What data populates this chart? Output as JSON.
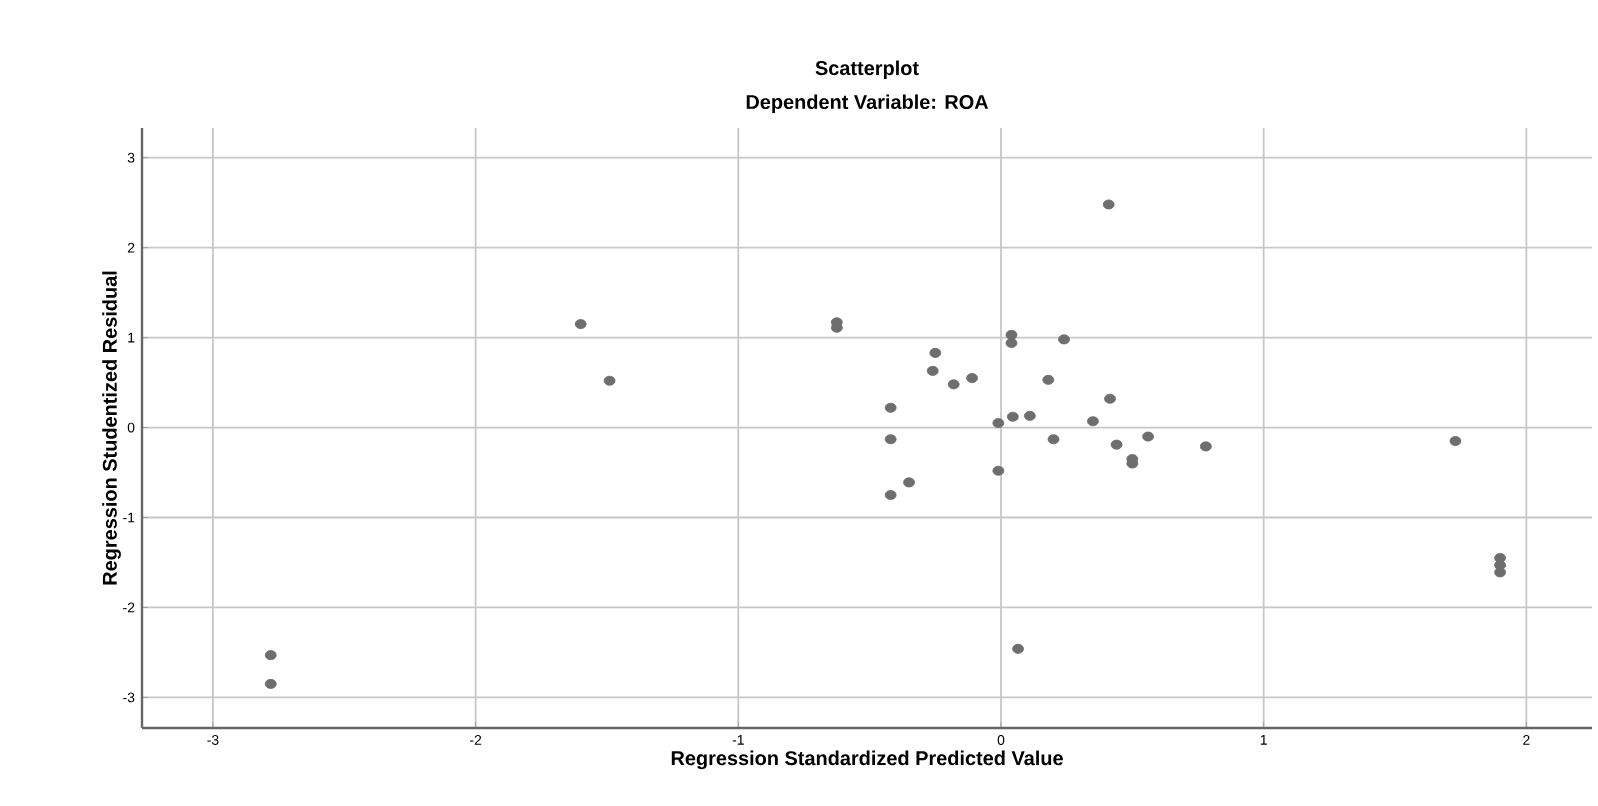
{
  "chart_data": {
    "type": "scatter",
    "title": "Scatterplot",
    "subtitle": "Dependent Variable: ROA",
    "xlabel": "Regression Standardized Predicted Value",
    "ylabel": "Regression Studentized Residual",
    "xlim": [
      -3.27,
      2.25
    ],
    "ylim": [
      -3.34,
      3.33
    ],
    "xticks": [
      -3,
      -2,
      -1,
      0,
      1,
      2
    ],
    "yticks": [
      -3,
      -2,
      -1,
      0,
      1,
      2,
      3
    ],
    "grid": true,
    "marker": "circle",
    "series": [
      {
        "color": "#6e6e6e",
        "x": [
          -2.78,
          -2.78,
          -1.6,
          -1.49,
          -0.625,
          -0.625,
          0.41,
          0.04,
          0.04,
          0.24,
          -0.25,
          -0.26,
          -0.18,
          -0.11,
          0.18,
          -0.42,
          -0.42,
          0.415,
          -0.01,
          0.045,
          0.11,
          0.35,
          0.2,
          0.44,
          0.56,
          0.5,
          0.5,
          0.77,
          0.78,
          -0.42,
          -0.35,
          -0.01,
          0.065,
          1.73,
          1.9,
          1.9,
          1.9
        ],
        "values": [
          -2.53,
          -2.85,
          1.15,
          0.52,
          1.17,
          1.11,
          2.48,
          1.03,
          0.94,
          0.98,
          0.83,
          0.63,
          0.48,
          0.55,
          0.53,
          0.22,
          -0.13,
          0.32,
          0.05,
          0.12,
          0.13,
          0.07,
          -0.13,
          -0.19,
          -0.1,
          -0.35,
          -0.4,
          null,
          -0.21,
          -0.75,
          -0.61,
          -0.48,
          -2.46,
          -0.15,
          -1.45,
          -1.53,
          -1.61
        ]
      }
    ]
  }
}
